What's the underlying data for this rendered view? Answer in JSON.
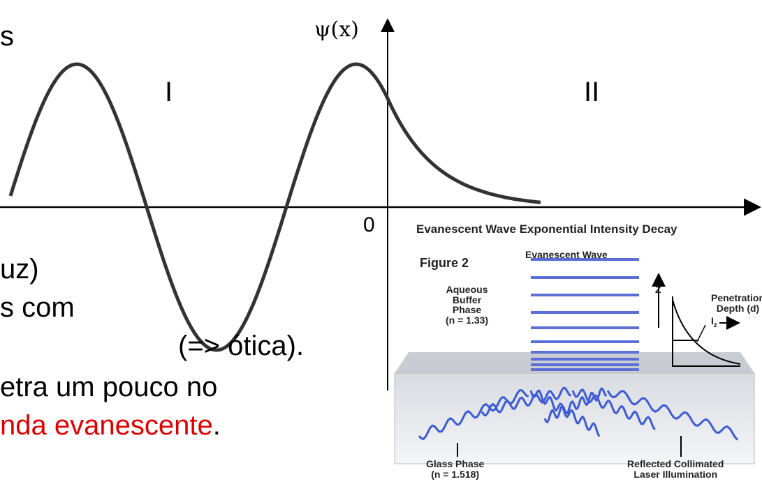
{
  "slide": {
    "title_fragment": "s",
    "text_lines": [
      "uz)",
      "s com",
      "(=> ótica).",
      "etra um pouco no"
    ],
    "last_line": {
      "highlight": "nda evanescente",
      "tail": "."
    }
  },
  "graph": {
    "y_axis_label": "ψ(x)",
    "region_1": "I",
    "region_2": "II",
    "origin_label": "0"
  },
  "figure": {
    "title": "Evanescent Wave Exponential Intensity Decay",
    "label": "Figure 2",
    "wave_label": "Evanescent Wave",
    "aqueous": [
      "Aqueous",
      "Buffer",
      "Phase",
      "(n = 1.33)"
    ],
    "z_axis": "Z",
    "penetration": [
      "Penetration",
      "Depth (d)"
    ],
    "intensity": "I",
    "intensity_sub": "z",
    "glass": [
      "Glass Phase",
      "(n = 1.518)"
    ],
    "reflected": [
      "Reflected Collimated",
      "Laser Illumination"
    ]
  }
}
